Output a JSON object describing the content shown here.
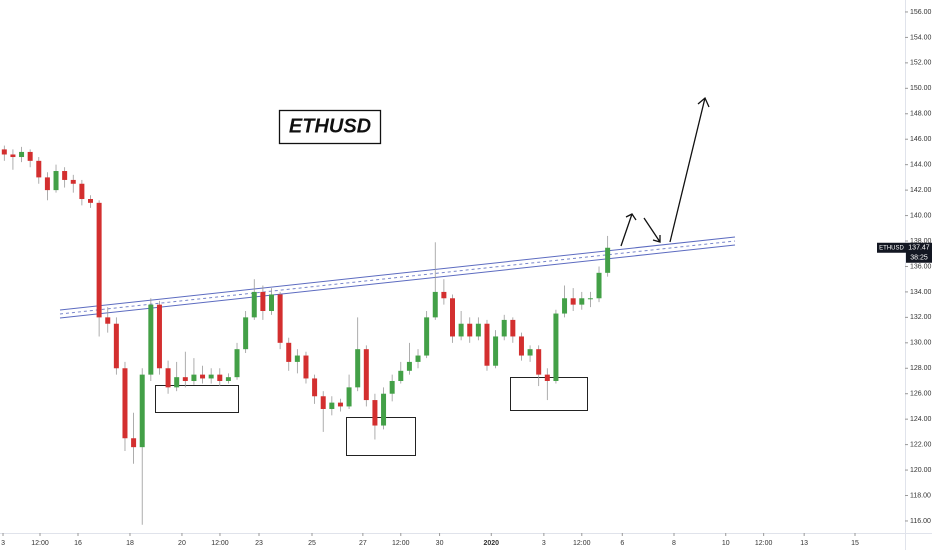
{
  "chart_data": {
    "type": "candlestick",
    "annotation": "ETHUSD",
    "x": [
      0.5,
      1.5,
      2.5,
      3.5,
      4.5,
      5.5,
      6.5,
      7.5,
      8.5,
      9.5,
      10.5,
      11.5,
      12.5,
      13.5,
      14.5,
      15.5,
      16.5,
      17.5,
      18.5,
      19.5,
      20.5,
      21.5,
      22.5,
      23.5,
      24.5,
      25.5,
      26.5,
      27.5,
      28.5,
      29.5,
      30.5,
      31.5,
      32.5,
      33.5,
      34.5,
      35.5,
      36.5,
      37.5,
      38.5,
      39.5,
      40.5,
      41.5,
      42.5,
      43.5,
      44.5,
      45.5,
      46.5,
      47.5,
      48.5,
      49.5,
      50.5,
      51.5,
      52.5,
      53.5,
      54.5,
      55.5,
      56.5,
      57.5,
      58.5,
      59.5,
      60.5,
      61.5,
      62.5,
      63.5,
      64.5,
      65.5,
      66.5,
      67.5,
      68.5,
      69.5,
      70.5
    ],
    "open": [
      145.2,
      144.8,
      144.6,
      145,
      144.3,
      143,
      142,
      143.5,
      142.8,
      142.5,
      141.3,
      141,
      132,
      131.5,
      128,
      122.5,
      121.8,
      127.5,
      133,
      128,
      126.5,
      127.3,
      127,
      127.5,
      127.2,
      127.5,
      127,
      127.3,
      129.5,
      132,
      134,
      132.5,
      133.8,
      130,
      128.5,
      129,
      127.2,
      125.8,
      124.8,
      125.3,
      125,
      126.5,
      129.5,
      125.5,
      123.5,
      126,
      127,
      127.8,
      128.5,
      129,
      132,
      134,
      133.5,
      130.5,
      131.5,
      130.5,
      131.5,
      128.2,
      130.5,
      131.8,
      130.5,
      129,
      129.5,
      127.5,
      127,
      132.3,
      133.5,
      133,
      133.5,
      133.5,
      135.5
    ],
    "high": [
      145.5,
      145.2,
      145.4,
      145.2,
      144.6,
      143.4,
      144,
      143.8,
      143.2,
      142.8,
      141.6,
      141.2,
      132.8,
      132,
      128.5,
      124.5,
      128,
      133.5,
      133.3,
      128.6,
      128.5,
      129.3,
      128.8,
      128.2,
      128,
      128,
      127.6,
      130,
      132.5,
      135,
      134.5,
      134.3,
      134,
      130.4,
      129.5,
      129.3,
      127.5,
      126.2,
      125.8,
      125.6,
      127.5,
      132,
      129.8,
      126,
      126.5,
      127.5,
      128.5,
      130,
      129.5,
      132.5,
      137.9,
      135,
      133.8,
      132.5,
      132,
      132,
      131.8,
      131,
      132.2,
      132,
      130.8,
      129.8,
      129.8,
      128,
      132.6,
      134.5,
      134.3,
      134,
      134,
      136,
      138.4
    ],
    "low": [
      144.3,
      143.6,
      144.2,
      143.8,
      142.5,
      141.2,
      141.8,
      142.2,
      141.8,
      140.8,
      140.6,
      130.5,
      130.8,
      127.5,
      121.5,
      120.5,
      115.7,
      127,
      127.5,
      126,
      126.2,
      126.5,
      126.7,
      126.8,
      126.8,
      126.6,
      126.8,
      127.1,
      129.2,
      131.8,
      131.8,
      132.2,
      129.5,
      127.8,
      127.6,
      126.8,
      125.2,
      123,
      124.3,
      124.6,
      124.8,
      126.2,
      125,
      122.4,
      123.2,
      125.4,
      126.8,
      127.5,
      128,
      128.8,
      131.8,
      133,
      130,
      130.2,
      130,
      130.2,
      127.8,
      128,
      130.2,
      130,
      128.6,
      128.5,
      126.6,
      125.5,
      126.8,
      132,
      132.5,
      132.6,
      132.8,
      133.2,
      135.2
    ],
    "close": [
      144.8,
      144.6,
      145,
      144.3,
      143,
      142,
      143.5,
      142.8,
      142.5,
      141.3,
      141,
      132,
      131.5,
      128,
      122.5,
      121.8,
      127.5,
      133,
      128,
      126.5,
      127.3,
      127,
      127.5,
      127.2,
      127.5,
      127,
      127.3,
      129.5,
      132,
      134,
      132.5,
      133.8,
      130,
      128.5,
      129,
      127.2,
      125.8,
      124.8,
      125.3,
      125,
      126.5,
      129.5,
      125.5,
      123.5,
      126,
      127,
      127.8,
      128.5,
      129,
      132,
      134,
      133.5,
      130.5,
      131.5,
      130.5,
      131.5,
      128.2,
      130.5,
      131.8,
      130.5,
      129,
      129.5,
      127.5,
      127,
      132.3,
      133.5,
      133,
      133.5,
      133.5,
      135.5,
      137.47
    ],
    "up_color": "#43a047",
    "down_color": "#d32f2f",
    "xlim": [
      0,
      105
    ],
    "ylim": [
      115.29,
      156.94
    ],
    "xticks": [
      {
        "value": 0.35,
        "label": "3"
      },
      {
        "value": 4.64,
        "label": "12:00"
      },
      {
        "value": 9.05,
        "label": "16"
      },
      {
        "value": 15.08,
        "label": "18"
      },
      {
        "value": 21.11,
        "label": "20"
      },
      {
        "value": 25.52,
        "label": "12:00"
      },
      {
        "value": 30.05,
        "label": "23"
      },
      {
        "value": 36.2,
        "label": "25"
      },
      {
        "value": 42.1,
        "label": "27"
      },
      {
        "value": 46.5,
        "label": "12:00"
      },
      {
        "value": 51.0,
        "label": "30"
      },
      {
        "value": 57.0,
        "label": "2020"
      },
      {
        "value": 63.1,
        "label": "3"
      },
      {
        "value": 67.5,
        "label": "12:00"
      },
      {
        "value": 72.2,
        "label": "6"
      },
      {
        "value": 78.2,
        "label": "8"
      },
      {
        "value": 84.2,
        "label": "10"
      },
      {
        "value": 88.6,
        "label": "12:00"
      },
      {
        "value": 93.3,
        "label": "13"
      },
      {
        "value": 99.2,
        "label": "15"
      }
    ],
    "yticks": [
      {
        "value": 116,
        "label": "116.00"
      },
      {
        "value": 118,
        "label": "118.00"
      },
      {
        "value": 120,
        "label": "120.00"
      },
      {
        "value": 122,
        "label": "122.00"
      },
      {
        "value": 124,
        "label": "124.00"
      },
      {
        "value": 126,
        "label": "126.00"
      },
      {
        "value": 128,
        "label": "128.00"
      },
      {
        "value": 130,
        "label": "130.00"
      },
      {
        "value": 132,
        "label": "132.00"
      },
      {
        "value": 134,
        "label": "134.00"
      },
      {
        "value": 136,
        "label": "136.00"
      },
      {
        "value": 138,
        "label": "138.00"
      },
      {
        "value": 140,
        "label": "140.00"
      },
      {
        "value": 142,
        "label": "142.00"
      },
      {
        "value": 144,
        "label": "144.00"
      },
      {
        "value": 146,
        "label": "146.00"
      },
      {
        "value": 148,
        "label": "148.00"
      },
      {
        "value": 150,
        "label": "150.00"
      },
      {
        "value": 152,
        "label": "152.00"
      },
      {
        "value": 154,
        "label": "154.00"
      },
      {
        "value": 156,
        "label": "156.00"
      }
    ],
    "price_tag": {
      "symbol": "ETHUSD",
      "price": 137.47,
      "countdown": "38:25"
    }
  }
}
